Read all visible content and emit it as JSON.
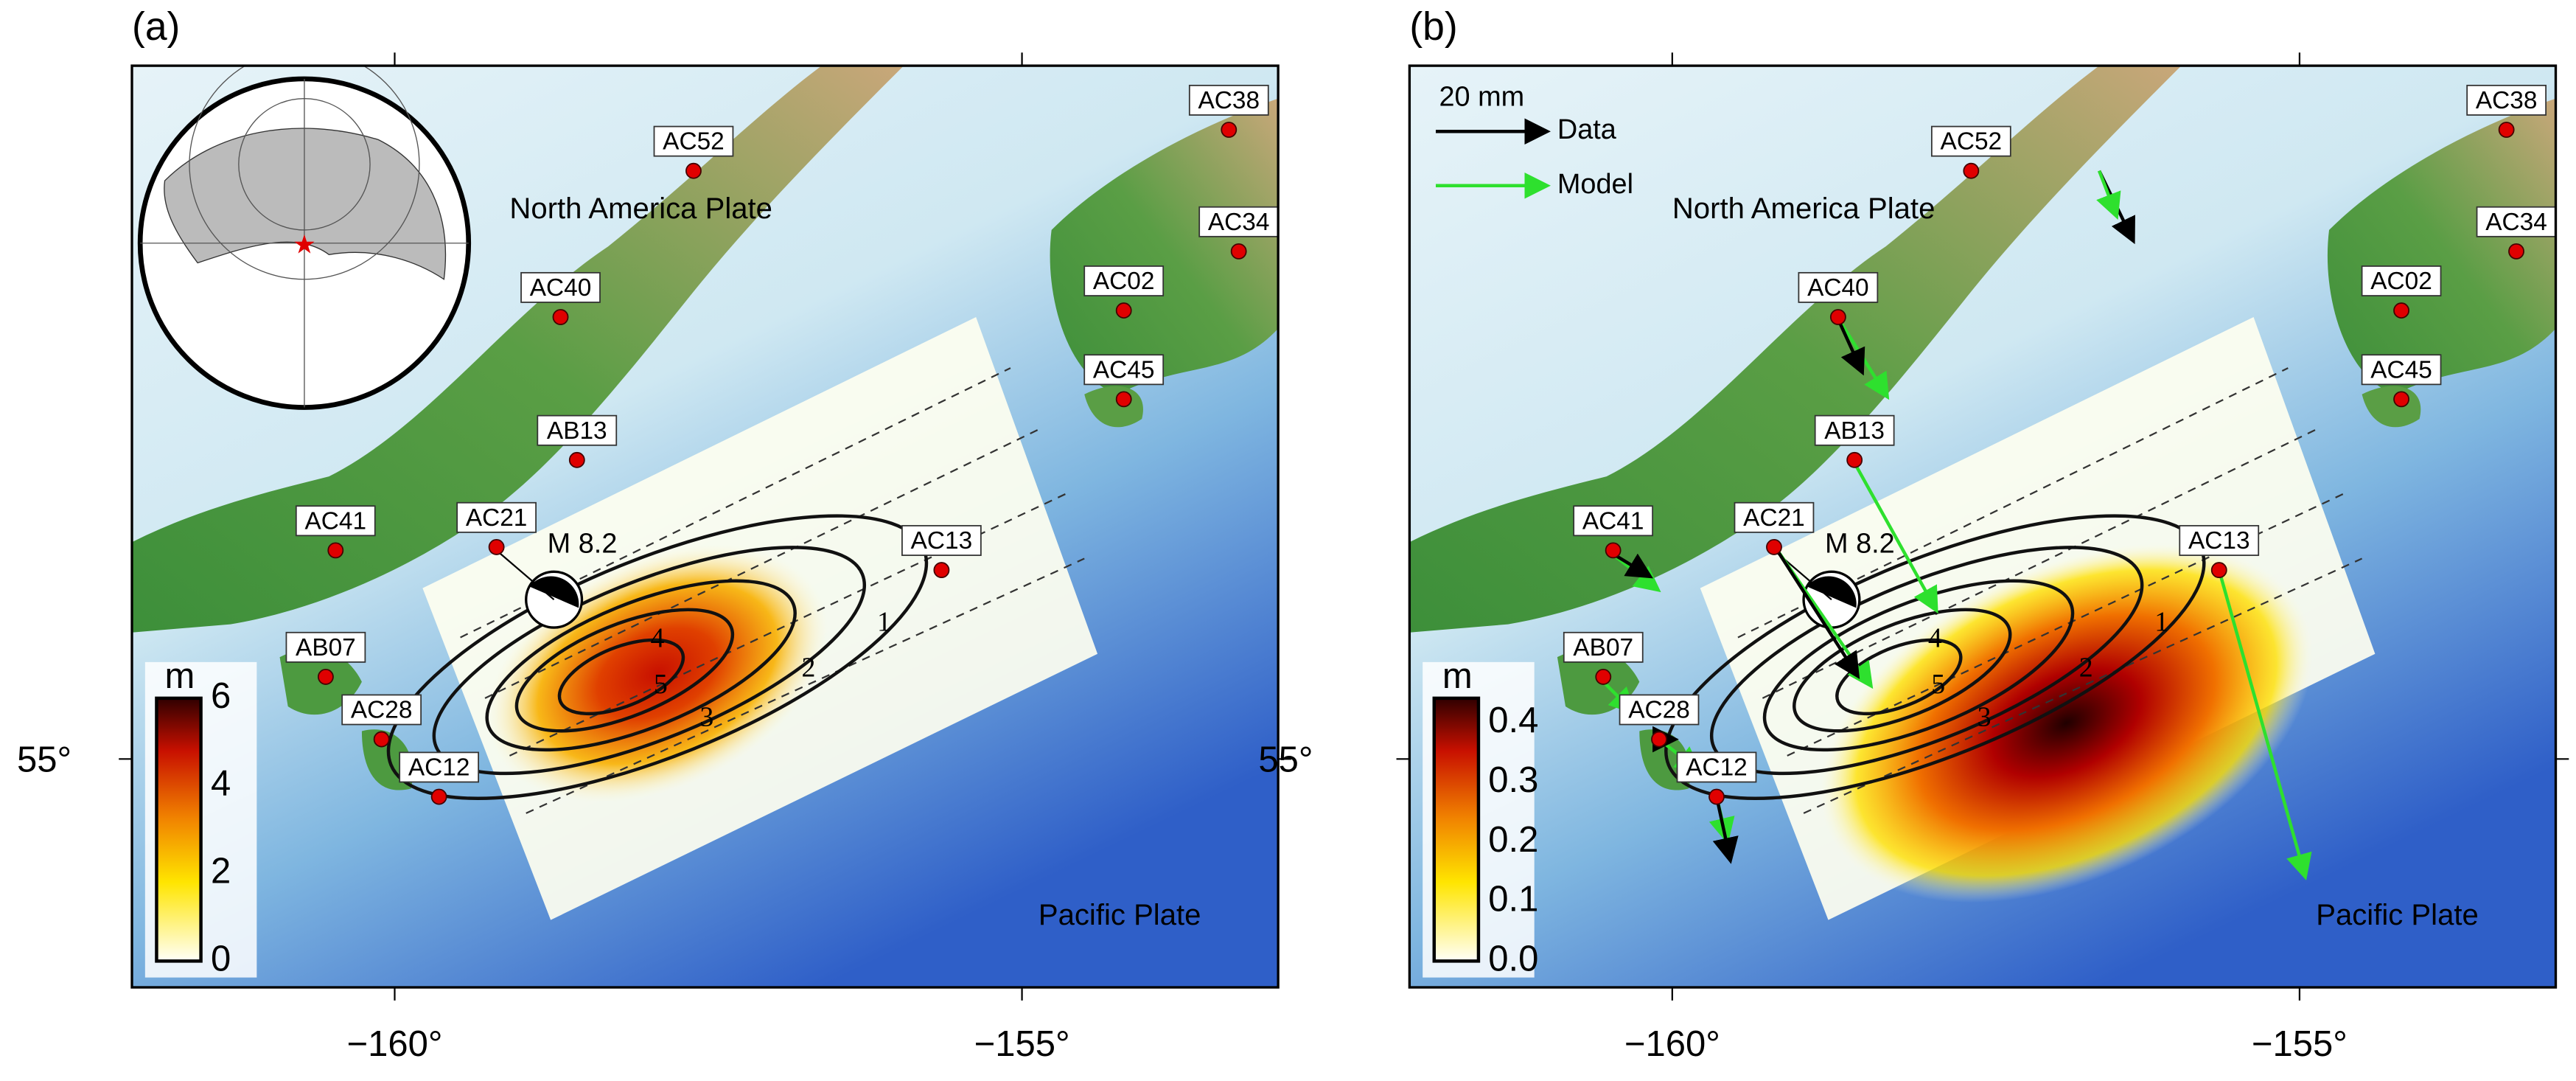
{
  "panels": [
    {
      "label": "(a)",
      "stations": [
        "AC52",
        "AC40",
        "AB13",
        "AC21",
        "AC41",
        "AC13",
        "AB07",
        "AC28",
        "AC12",
        "AC02",
        "AC45",
        "AC38",
        "AC34"
      ],
      "plate_labels": [
        "North America Plate",
        "Pacific Plate"
      ],
      "event_label": "M 8.2",
      "colorbar": {
        "unit": "m",
        "ticks": [
          "0",
          "2",
          "4",
          "6"
        ]
      },
      "contour_labels": [
        "1",
        "2",
        "3",
        "4",
        "5"
      ],
      "x_ticks": [
        "−160°",
        "−155°"
      ],
      "y_ticks": [
        "55°"
      ]
    },
    {
      "label": "(b)",
      "stations": [
        "AC52",
        "AC40",
        "AB13",
        "AC21",
        "AC41",
        "AC13",
        "AB07",
        "AC28",
        "AC12",
        "AC02",
        "AC45",
        "AC38",
        "AC34"
      ],
      "plate_labels": [
        "North America Plate",
        "Pacific Plate"
      ],
      "event_label": "M 8.2",
      "colorbar": {
        "unit": "m",
        "ticks": [
          "0.0",
          "0.1",
          "0.2",
          "0.3",
          "0.4"
        ]
      },
      "contour_labels": [
        "1",
        "2",
        "3",
        "4",
        "5"
      ],
      "legend": {
        "scale": "20 mm",
        "data": "Data",
        "model": "Model"
      },
      "x_ticks": [
        "−160°",
        "−155°"
      ],
      "y_ticks": [
        "55°"
      ]
    }
  ]
}
